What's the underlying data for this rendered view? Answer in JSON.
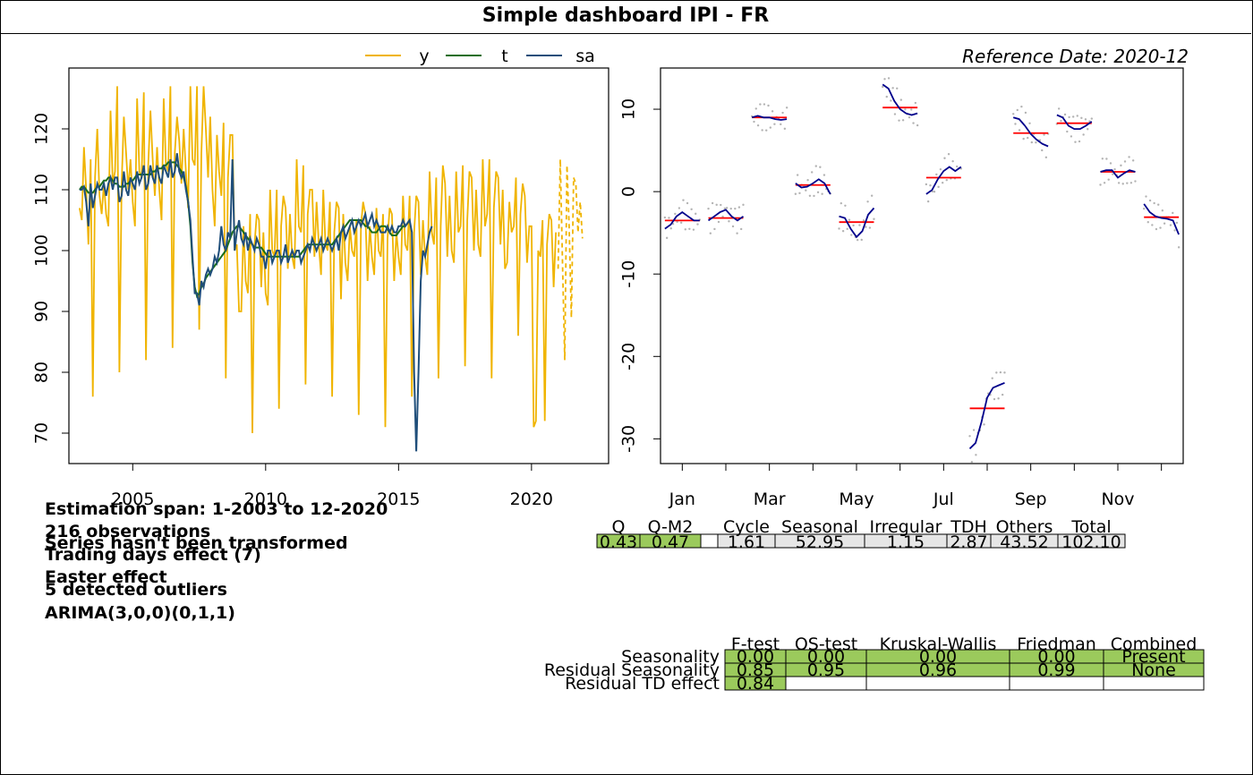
{
  "title": "Simple dashboard IPI - FR",
  "reference_date": "Reference Date: 2020-12",
  "colors": {
    "y": "#f0b400",
    "t": "#1a6e1a",
    "sa": "#1f4e7a",
    "green_cell": "#9bca5c",
    "grey_cell": "#e6e6e6",
    "seasonal_curve": "#00008b",
    "mean_line": "#ff0000",
    "points": "#b3b3b3"
  },
  "info": {
    "estimation_span": "Estimation span: 1-2003 to 12-2020",
    "observations": "216 observations",
    "transform": "Series hasn't been transformed",
    "trading_days": "Trading days effect (7)",
    "easter": "Easter effect",
    "outliers": "5 detected outliers",
    "arima": "ARIMA(3,0,0)(0,1,1)"
  },
  "variance_table": {
    "headers": [
      "Q",
      "Q-M2",
      "",
      "Cycle",
      "Seasonal",
      "Irregular",
      "TDH",
      "Others",
      "Total"
    ],
    "values": [
      "0.43",
      "0.47",
      "",
      "1.61",
      "52.95",
      "1.15",
      "2.87",
      "43.52",
      "102.10"
    ]
  },
  "tests_table": {
    "headers": [
      "F-test",
      "QS-test",
      "Kruskal-Wallis",
      "Friedman",
      "Combined"
    ],
    "rows": [
      {
        "label": "Seasonality",
        "values": [
          "0.00",
          "0.00",
          "0.00",
          "0.00",
          "Present"
        ]
      },
      {
        "label": "Residual Seasonality",
        "values": [
          "0.85",
          "0.95",
          "0.96",
          "0.99",
          "None"
        ]
      },
      {
        "label": "Residual TD effect",
        "values": [
          "0.84",
          "",
          "",
          "",
          ""
        ]
      }
    ]
  },
  "chart_data": [
    {
      "type": "line",
      "legend": [
        "y",
        "t",
        "sa"
      ],
      "legend_position": "top",
      "xlim": [
        2002.6,
        2022.9
      ],
      "ylim": [
        65,
        130
      ],
      "x_ticks": [
        2005,
        2010,
        2015,
        2020
      ],
      "y_ticks": [
        70,
        80,
        90,
        100,
        110,
        120
      ],
      "x_start": 2003.0,
      "series": [
        {
          "name": "y",
          "values": [
            107,
            105,
            117,
            110,
            101,
            115,
            76,
            112,
            120,
            109,
            106,
            111,
            106,
            104,
            123,
            111,
            113,
            127,
            80,
            111,
            122,
            116,
            110,
            115,
            108,
            104,
            125,
            113,
            112,
            126,
            82,
            114,
            123,
            115,
            109,
            117,
            110,
            105,
            125,
            114,
            113,
            127,
            84,
            116,
            122,
            118,
            111,
            120,
            113,
            107,
            127,
            115,
            114,
            127,
            87,
            116,
            127,
            120,
            112,
            122,
            110,
            104,
            119,
            113,
            109,
            121,
            79,
            112,
            119,
            119,
            100,
            101,
            90,
            90,
            104,
            95,
            93,
            106,
            70,
            101,
            106,
            105,
            94,
            103,
            93,
            91,
            110,
            100,
            99,
            110,
            74,
            104,
            109,
            107,
            97,
            106,
            99,
            97,
            115,
            104,
            103,
            114,
            78,
            106,
            110,
            110,
            99,
            108,
            101,
            96,
            110,
            101,
            100,
            108,
            76,
            103,
            108,
            107,
            92,
            106,
            98,
            95,
            104,
            100,
            99,
            105,
            73,
            104,
            108,
            106,
            95,
            104,
            99,
            96,
            107,
            100,
            99,
            106,
            71,
            102,
            107,
            106,
            95,
            103,
            99,
            96,
            109,
            101,
            100,
            109,
            76,
            103,
            109,
            108,
            96,
            105,
            99,
            96,
            113,
            103,
            101,
            112,
            79,
            104,
            114,
            111,
            99,
            109,
            100,
            98,
            113,
            103,
            104,
            114,
            81,
            105,
            113,
            112,
            100,
            110,
            101,
            99,
            115,
            104,
            106,
            115,
            79,
            107,
            113,
            112,
            101,
            110,
            97,
            98,
            108,
            103,
            104,
            112,
            86,
            106,
            111,
            109,
            98,
            104,
            104,
            71,
            72,
            100,
            99,
            105,
            72,
            101,
            106,
            105,
            94,
            103
          ]
        },
        {
          "name": "t",
          "values": [
            110,
            110.5,
            110.5,
            110,
            109.5,
            109.5,
            109.5,
            110,
            110.5,
            110.5,
            111,
            111.5,
            111.5,
            112,
            112,
            111.5,
            111,
            111,
            110.5,
            110.5,
            110.5,
            111,
            111,
            111.5,
            111.5,
            112,
            112.5,
            112.5,
            112.5,
            112.5,
            112.5,
            112.5,
            112.5,
            113,
            113,
            113.5,
            113.5,
            113.5,
            114,
            114,
            114.5,
            114.5,
            114.5,
            114.5,
            114,
            113.5,
            113,
            112,
            110.5,
            108,
            104,
            98,
            94,
            92.5,
            93,
            94,
            94.5,
            95.5,
            96,
            96.5,
            97,
            97.5,
            98,
            98.5,
            99,
            99.5,
            100,
            101,
            102,
            103,
            103.5,
            104,
            104,
            103.5,
            103,
            102.5,
            102,
            101.5,
            101,
            100.5,
            100.5,
            100.5,
            100.5,
            100,
            99.5,
            99,
            99,
            99,
            99,
            99,
            99,
            99,
            99,
            99,
            99,
            99,
            99,
            99,
            99,
            99,
            99.5,
            100,
            100.5,
            101,
            101,
            101,
            101,
            101,
            101,
            101,
            101,
            101,
            101,
            101,
            101,
            101.5,
            102,
            102.5,
            103,
            103.5,
            104,
            104.5,
            105,
            105,
            105,
            105,
            105,
            105,
            104.5,
            104,
            104,
            103.5,
            103,
            103,
            103,
            103.5,
            104,
            104,
            104,
            103.5,
            103,
            102.5,
            102.5,
            102.5,
            103,
            103.5,
            104,
            104,
            104.5,
            105
          ]
        },
        {
          "name": "sa",
          "values": [
            110,
            110,
            110.5,
            108,
            104,
            111,
            107,
            109,
            111,
            110,
            110,
            111,
            109,
            111,
            112,
            110,
            112,
            112,
            108,
            109,
            113,
            110,
            109,
            112,
            111,
            110,
            113,
            111,
            112,
            114,
            110,
            111,
            114,
            112,
            111,
            114,
            112,
            111,
            114,
            113,
            112,
            115,
            112,
            113,
            116,
            113,
            112,
            113,
            110,
            108,
            105,
            99,
            93,
            93,
            91,
            95,
            94,
            96,
            97,
            96,
            97,
            99,
            98,
            100,
            104,
            101,
            100,
            103,
            102,
            115,
            100,
            103,
            105,
            102,
            101,
            103,
            100,
            102,
            101,
            100,
            102,
            101,
            99,
            99,
            97,
            100,
            100,
            98,
            99,
            100,
            100,
            98,
            99,
            101,
            98,
            99,
            100,
            99,
            100,
            100,
            98,
            99,
            100,
            101,
            100,
            102,
            101,
            100,
            101,
            102,
            100,
            101,
            102,
            101,
            100,
            101,
            102,
            100,
            103,
            104,
            102,
            103,
            104,
            105,
            103,
            104,
            105,
            104,
            105,
            106,
            104,
            105,
            106,
            104,
            105,
            104,
            103,
            103,
            103,
            104,
            103,
            104,
            103,
            103,
            104,
            104,
            105,
            104,
            104.5,
            105,
            103,
            80,
            67,
            80,
            95,
            100,
            99,
            101,
            103,
            104
          ]
        },
        {
          "name": "y (forecast)",
          "dashed": true,
          "x_start": 2021.0,
          "values": [
            97,
            115,
            98,
            82,
            114,
            104,
            89,
            112,
            111,
            103,
            108,
            102
          ]
        }
      ]
    },
    {
      "type": "line",
      "subtype": "seasonal-irregular by month",
      "xlim": [
        0.5,
        12.5
      ],
      "ylim": [
        -33,
        15
      ],
      "x_tick_labels": [
        "Jan",
        "Mar",
        "May",
        "Jul",
        "Sep",
        "Nov"
      ],
      "x_tick_positions": [
        2,
        4,
        6,
        8,
        10,
        12
      ],
      "y_ticks": [
        10,
        0,
        -10,
        -20,
        -30
      ],
      "months": [
        {
          "mean": -3.5,
          "curve": [
            -4.5,
            -4,
            -3,
            -2.5,
            -3,
            -3.5,
            -3.5
          ]
        },
        {
          "mean": -3.2,
          "curve": [
            -3.5,
            -3,
            -2.5,
            -2.2,
            -3,
            -3.5,
            -3
          ]
        },
        {
          "mean": 9.0,
          "curve": [
            9,
            9.2,
            9,
            9,
            8.8,
            8.7,
            8.8
          ]
        },
        {
          "mean": 0.8,
          "curve": [
            1,
            0.5,
            0.6,
            1,
            1.5,
            1,
            -0.3
          ]
        },
        {
          "mean": -3.7,
          "curve": [
            -3,
            -3.2,
            -4.5,
            -5.5,
            -4.8,
            -2.8,
            -2
          ]
        },
        {
          "mean": 10.2,
          "curve": [
            13,
            12.5,
            11,
            10,
            9.5,
            9.3,
            9.5
          ]
        },
        {
          "mean": 1.7,
          "curve": [
            -0.3,
            0.2,
            1.5,
            2.5,
            3,
            2.5,
            3
          ]
        },
        {
          "mean": -26.3,
          "curve": [
            -31.2,
            -30.5,
            -28,
            -25,
            -23.8,
            -23.5,
            -23.2
          ]
        },
        {
          "mean": 7.1,
          "curve": [
            9,
            8.8,
            8,
            7,
            6.3,
            5.8,
            5.5
          ]
        },
        {
          "mean": 8.3,
          "curve": [
            9.3,
            9,
            8,
            7.6,
            7.6,
            8,
            8.5
          ]
        },
        {
          "mean": 2.4,
          "curve": [
            2.4,
            2.6,
            2.6,
            1.7,
            2.2,
            2.6,
            2.4
          ]
        },
        {
          "mean": -3.1,
          "curve": [
            -1.5,
            -2.5,
            -3,
            -3.2,
            -3.3,
            -3.5,
            -5.2
          ]
        }
      ]
    }
  ]
}
